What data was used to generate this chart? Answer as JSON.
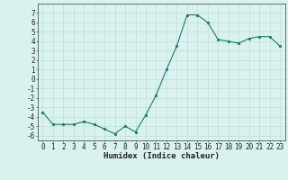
{
  "x": [
    0,
    1,
    2,
    3,
    4,
    5,
    6,
    7,
    8,
    9,
    10,
    11,
    12,
    13,
    14,
    15,
    16,
    17,
    18,
    19,
    20,
    21,
    22,
    23
  ],
  "y": [
    -3.5,
    -4.8,
    -4.8,
    -4.8,
    -4.5,
    -4.8,
    -5.3,
    -5.8,
    -5.0,
    -5.6,
    -3.8,
    -1.7,
    1.0,
    3.5,
    6.8,
    6.8,
    6.0,
    4.2,
    4.0,
    3.8,
    4.3,
    4.5,
    4.5,
    3.5
  ],
  "xlabel": "Humidex (Indice chaleur)",
  "ylim": [
    -6.5,
    8.0
  ],
  "xlim": [
    -0.5,
    23.5
  ],
  "yticks": [
    -6,
    -5,
    -4,
    -3,
    -2,
    -1,
    0,
    1,
    2,
    3,
    4,
    5,
    6,
    7
  ],
  "xticks": [
    0,
    1,
    2,
    3,
    4,
    5,
    6,
    7,
    8,
    9,
    10,
    11,
    12,
    13,
    14,
    15,
    16,
    17,
    18,
    19,
    20,
    21,
    22,
    23
  ],
  "line_color": "#1a7a6a",
  "marker_color": "#1a7a6a",
  "bg_color": "#d9f2f0",
  "grid_color": "#c0ddd9",
  "xlabel_fontsize": 6.5,
  "tick_fontsize": 5.5
}
